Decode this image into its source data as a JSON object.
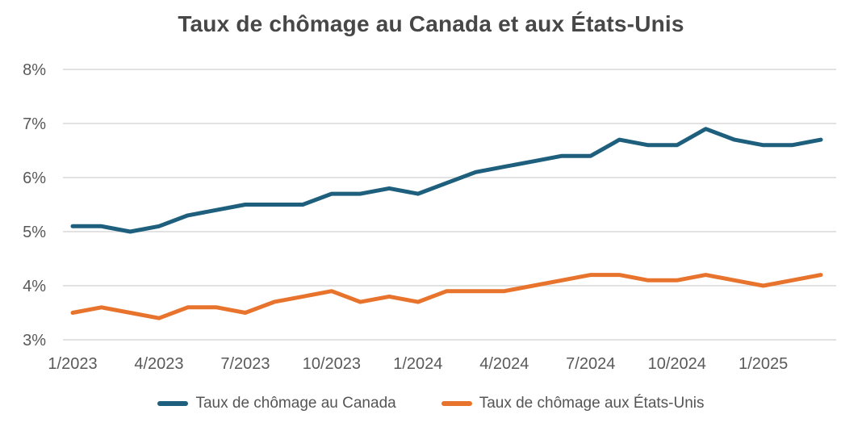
{
  "title": "Taux de chômage au Canada et aux États-Unis",
  "chart_data": {
    "type": "line",
    "title": "Taux de chômage au Canada et aux États-Unis",
    "x": [
      "1/2023",
      "2/2023",
      "3/2023",
      "4/2023",
      "5/2023",
      "6/2023",
      "7/2023",
      "8/2023",
      "9/2023",
      "10/2023",
      "11/2023",
      "12/2023",
      "1/2024",
      "2/2024",
      "3/2024",
      "4/2024",
      "5/2024",
      "6/2024",
      "7/2024",
      "8/2024",
      "9/2024",
      "10/2024",
      "11/2024",
      "12/2024",
      "1/2025",
      "2/2025",
      "3/2025"
    ],
    "x_tick_labels": [
      "1/2023",
      "4/2023",
      "7/2023",
      "10/2023",
      "1/2024",
      "4/2024",
      "7/2024",
      "10/2024",
      "1/2025"
    ],
    "y_ticks": [
      "3%",
      "4%",
      "5%",
      "6%",
      "7%",
      "8%"
    ],
    "ylim": [
      3,
      8
    ],
    "grid": "horizontal",
    "legend_position": "bottom",
    "series": [
      {
        "name": "Taux de chômage au Canada",
        "color": "#1e5f7d",
        "values": [
          5.1,
          5.1,
          5.0,
          5.1,
          5.3,
          5.4,
          5.5,
          5.5,
          5.5,
          5.7,
          5.7,
          5.8,
          5.7,
          5.9,
          6.1,
          6.2,
          6.3,
          6.4,
          6.4,
          6.7,
          6.6,
          6.6,
          6.9,
          6.7,
          6.6,
          6.6,
          6.7
        ]
      },
      {
        "name": "Taux de chômage aux États-Unis",
        "color": "#e8732d",
        "values": [
          3.5,
          3.6,
          3.5,
          3.4,
          3.6,
          3.6,
          3.5,
          3.7,
          3.8,
          3.9,
          3.7,
          3.8,
          3.7,
          3.9,
          3.9,
          3.9,
          4.0,
          4.1,
          4.2,
          4.2,
          4.1,
          4.1,
          4.2,
          4.1,
          4.0,
          4.1,
          4.2
        ]
      }
    ]
  }
}
